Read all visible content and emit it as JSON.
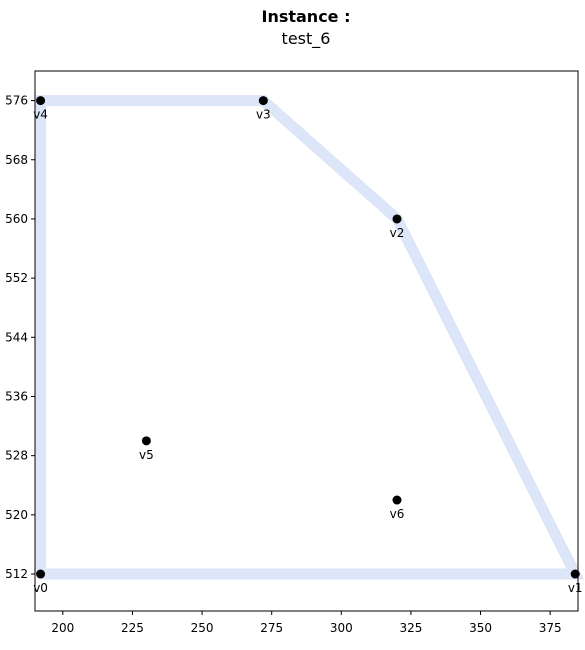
{
  "chart_data": {
    "type": "scatter",
    "title_bold": "Instance :",
    "title": "test_6",
    "xlabel": "",
    "ylabel": "",
    "xlim": [
      190,
      385
    ],
    "ylim": [
      507,
      580
    ],
    "x_ticks": [
      200,
      225,
      250,
      275,
      300,
      325,
      350,
      375
    ],
    "y_ticks": [
      512,
      520,
      528,
      536,
      544,
      552,
      560,
      568,
      576
    ],
    "grid": false,
    "colors": {
      "points": "#000000",
      "hull": "#dde6f8",
      "axes": "#000000"
    },
    "points": [
      {
        "label": "v0",
        "x": 192,
        "y": 512
      },
      {
        "label": "v1",
        "x": 384,
        "y": 512
      },
      {
        "label": "v2",
        "x": 320,
        "y": 560
      },
      {
        "label": "v3",
        "x": 272,
        "y": 576
      },
      {
        "label": "v4",
        "x": 192,
        "y": 576
      },
      {
        "label": "v5",
        "x": 230,
        "y": 530
      },
      {
        "label": "v6",
        "x": 320,
        "y": 522
      }
    ],
    "hull": [
      "v0",
      "v1",
      "v2",
      "v3",
      "v4",
      "v0"
    ]
  }
}
